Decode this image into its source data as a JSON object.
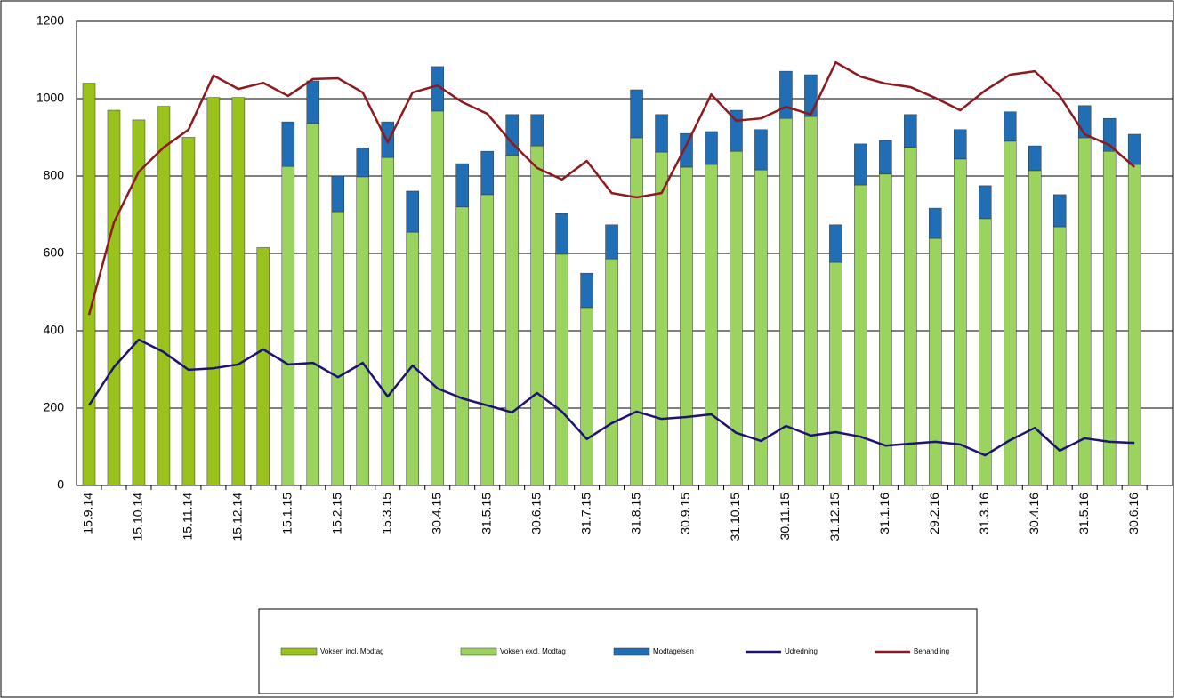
{
  "chart_data": {
    "type": "bar",
    "categories": [
      "15.9.14",
      null,
      "15.10.14",
      null,
      "15.11.14",
      null,
      "15.12.14",
      null,
      "15.1.15",
      null,
      "15.2.15",
      null,
      "15.3.15",
      null,
      "30.4.15",
      null,
      "31.5.15",
      null,
      "30.6.15",
      null,
      "31.7.15",
      null,
      "31.8.15",
      null,
      "30.9.15",
      null,
      "31.10.15",
      null,
      "30.11.15",
      null,
      "31.12.15",
      null,
      "31.1.16",
      null,
      "29.2.16",
      null,
      "31.3.16",
      null,
      "30.4.16",
      null,
      "31.5.16",
      null,
      "30.6.16"
    ],
    "series": [
      {
        "name": "Voksen incl. Modtag",
        "type": "bar",
        "color": "#99c31c",
        "values": [
          1040,
          970,
          945,
          980,
          900,
          1003,
          1003,
          615,
          null,
          null,
          null,
          null,
          null,
          null,
          null,
          null,
          null,
          null,
          null,
          null,
          null,
          null,
          null,
          null,
          null,
          null,
          null,
          null,
          null,
          null,
          null,
          null,
          null,
          null,
          null,
          null,
          null,
          null,
          null,
          null,
          null,
          null,
          null
        ]
      },
      {
        "name": "Voksen excl. Modtag",
        "type": "bar",
        "color": "#9bd35f",
        "values": [
          null,
          null,
          null,
          null,
          null,
          null,
          null,
          null,
          825,
          936,
          708,
          798,
          848,
          655,
          968,
          720,
          752,
          853,
          878,
          598,
          460,
          586,
          899,
          862,
          823,
          830,
          864,
          816,
          949,
          954,
          577,
          777,
          805,
          874,
          639,
          844,
          690,
          890,
          814,
          669,
          899,
          864,
          830
        ]
      },
      {
        "name": "Modtagelsen",
        "type": "bar",
        "color": "#1f6eb6",
        "values": [
          null,
          null,
          null,
          null,
          null,
          null,
          null,
          null,
          115,
          110,
          92,
          75,
          92,
          106,
          115,
          112,
          112,
          106,
          81,
          105,
          89,
          88,
          124,
          97,
          87,
          85,
          106,
          104,
          122,
          108,
          97,
          106,
          87,
          85,
          78,
          76,
          85,
          76,
          64,
          83,
          83,
          85,
          78
        ]
      },
      {
        "name": "Udredning",
        "type": "line",
        "color": "#1c1470",
        "values": [
          207,
          306,
          377,
          345,
          299,
          303,
          313,
          352,
          313,
          317,
          280,
          317,
          230,
          310,
          251,
          225,
          207,
          189,
          239,
          191,
          120,
          161,
          191,
          172,
          177,
          184,
          136,
          115,
          154,
          129,
          138,
          126,
          103,
          108,
          113,
          106,
          78,
          117,
          149,
          90,
          122,
          113,
          110
        ]
      },
      {
        "name": "Behandling",
        "type": "line",
        "color": "#8c1a1e",
        "values": [
          441,
          680,
          811,
          874,
          920,
          1060,
          1025,
          1041,
          1007,
          1051,
          1053,
          1016,
          887,
          1016,
          1034,
          991,
          961,
          885,
          821,
          791,
          839,
          756,
          745,
          756,
          880,
          1011,
          943,
          949,
          979,
          959,
          1094,
          1057,
          1039,
          1030,
          1002,
          970,
          1021,
          1062,
          1071,
          1007,
          908,
          880,
          823
        ]
      }
    ],
    "ylim": [
      0,
      1200
    ],
    "yticks": [
      0,
      200,
      400,
      600,
      800,
      1000,
      1200
    ],
    "grid": true
  }
}
